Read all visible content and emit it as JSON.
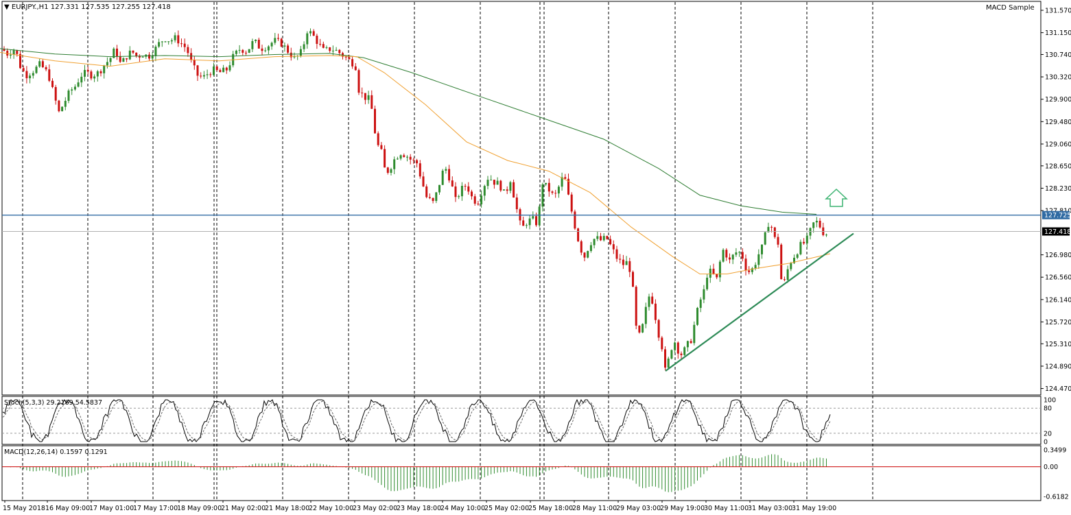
{
  "header": {
    "symbol": "EURJPY.,H1",
    "ohlc": "127.331 127.535 127.255 127.418",
    "indicator_name": "MACD Sample"
  },
  "colors": {
    "bull": "#2e8b2e",
    "bear": "#cc1111",
    "ma_fast": "#f0a030",
    "ma_slow": "#2e7d32",
    "resistance": "#2f6aa3",
    "trendline": "#2e8b57",
    "arrow": "#3cb371",
    "macd_hist": "#2e8b2e",
    "macd_signal": "#cc0000",
    "badge_bg": "#2f6aa3",
    "price_badge_bg": "#000000"
  },
  "chart_data": [
    {
      "type": "candlestick",
      "price_axis": [
        "131.570",
        "131.150",
        "130.740",
        "130.320",
        "129.900",
        "129.480",
        "129.060",
        "128.650",
        "128.230",
        "127.810",
        "126.980",
        "126.560",
        "126.140",
        "125.720",
        "125.310",
        "124.890",
        "124.470"
      ],
      "ylim": [
        124.4,
        131.66
      ],
      "time_axis": [
        "15 May 2018",
        "16 May 09:00",
        "17 May 01:00",
        "17 May 17:00",
        "18 May 09:00",
        "21 May 02:00",
        "21 May 18:00",
        "22 May 10:00",
        "23 May 02:00",
        "23 May 18:00",
        "24 May 10:00",
        "25 May 02:00",
        "25 May 18:00",
        "28 May 11:00",
        "29 May 03:00",
        "29 May 19:00",
        "30 May 11:00",
        "31 May 03:00",
        "31 May 19:00"
      ],
      "resistance_level": 127.725,
      "resistance_label": "127.725",
      "last_price": 127.418,
      "last_price_label": "127.418",
      "close_path": [
        [
          0,
          130.9
        ],
        [
          10,
          130.75
        ],
        [
          22,
          130.85
        ],
        [
          30,
          130.5
        ],
        [
          38,
          130.35
        ],
        [
          50,
          130.45
        ],
        [
          58,
          130.55
        ],
        [
          66,
          130.45
        ],
        [
          72,
          130.3
        ],
        [
          78,
          130.0
        ],
        [
          86,
          129.65
        ],
        [
          94,
          129.85
        ],
        [
          102,
          130.05
        ],
        [
          110,
          130.15
        ],
        [
          118,
          130.35
        ],
        [
          126,
          130.4
        ],
        [
          134,
          130.35
        ],
        [
          144,
          130.4
        ],
        [
          152,
          130.55
        ],
        [
          160,
          130.65
        ],
        [
          168,
          130.85
        ],
        [
          176,
          130.55
        ],
        [
          184,
          130.7
        ],
        [
          192,
          130.8
        ],
        [
          200,
          130.7
        ],
        [
          208,
          130.75
        ],
        [
          216,
          130.7
        ],
        [
          224,
          130.8
        ],
        [
          232,
          130.95
        ],
        [
          240,
          131.05
        ],
        [
          248,
          131.0
        ],
        [
          256,
          131.05
        ],
        [
          264,
          130.95
        ],
        [
          272,
          130.85
        ],
        [
          280,
          130.55
        ],
        [
          288,
          130.35
        ],
        [
          296,
          130.3
        ],
        [
          304,
          130.4
        ],
        [
          312,
          130.45
        ],
        [
          320,
          130.4
        ],
        [
          330,
          130.45
        ],
        [
          340,
          130.7
        ],
        [
          350,
          130.85
        ],
        [
          360,
          130.8
        ],
        [
          370,
          131.0
        ],
        [
          380,
          130.85
        ],
        [
          390,
          130.9
        ],
        [
          400,
          131.0
        ],
        [
          410,
          130.95
        ],
        [
          420,
          130.8
        ],
        [
          430,
          130.65
        ],
        [
          440,
          130.8
        ],
        [
          448,
          131.2
        ],
        [
          456,
          131.1
        ],
        [
          464,
          130.95
        ],
        [
          472,
          130.8
        ],
        [
          482,
          130.85
        ],
        [
          492,
          130.8
        ],
        [
          502,
          130.7
        ],
        [
          512,
          130.6
        ],
        [
          518,
          130.55
        ],
        [
          522,
          130.1
        ],
        [
          530,
          129.95
        ],
        [
          538,
          129.9
        ],
        [
          544,
          129.6
        ],
        [
          548,
          129.1
        ],
        [
          556,
          128.9
        ],
        [
          562,
          128.5
        ],
        [
          568,
          128.6
        ],
        [
          576,
          128.8
        ],
        [
          584,
          128.9
        ],
        [
          592,
          128.85
        ],
        [
          600,
          128.75
        ],
        [
          608,
          128.7
        ],
        [
          614,
          128.4
        ],
        [
          622,
          128.05
        ],
        [
          632,
          127.95
        ],
        [
          640,
          128.3
        ],
        [
          648,
          128.65
        ],
        [
          656,
          128.4
        ],
        [
          664,
          128.0
        ],
        [
          672,
          128.2
        ],
        [
          680,
          128.3
        ],
        [
          688,
          128.05
        ],
        [
          696,
          127.95
        ],
        [
          704,
          128.25
        ],
        [
          712,
          128.45
        ],
        [
          720,
          128.35
        ],
        [
          728,
          128.3
        ],
        [
          736,
          128.1
        ],
        [
          744,
          128.4
        ],
        [
          752,
          127.9
        ],
        [
          760,
          127.45
        ],
        [
          768,
          127.6
        ],
        [
          776,
          127.65
        ],
        [
          784,
          127.55
        ],
        [
          790,
          128.35
        ],
        [
          800,
          128.2
        ],
        [
          808,
          128.05
        ],
        [
          816,
          128.3
        ],
        [
          822,
          128.5
        ],
        [
          828,
          128.1
        ],
        [
          834,
          127.75
        ],
        [
          840,
          127.4
        ],
        [
          846,
          127.1
        ],
        [
          852,
          126.95
        ],
        [
          860,
          127.2
        ],
        [
          868,
          127.3
        ],
        [
          876,
          127.25
        ],
        [
          884,
          127.3
        ],
        [
          892,
          127.1
        ],
        [
          900,
          126.9
        ],
        [
          908,
          126.8
        ],
        [
          916,
          126.85
        ],
        [
          922,
          126.4
        ],
        [
          926,
          125.7
        ],
        [
          930,
          125.4
        ],
        [
          936,
          125.6
        ],
        [
          942,
          126.0
        ],
        [
          948,
          126.3
        ],
        [
          954,
          125.9
        ],
        [
          960,
          125.5
        ],
        [
          966,
          125.2
        ],
        [
          970,
          124.75
        ],
        [
          976,
          125.1
        ],
        [
          982,
          125.4
        ],
        [
          988,
          125.2
        ],
        [
          994,
          125.1
        ],
        [
          1000,
          125.25
        ],
        [
          1008,
          125.4
        ],
        [
          1014,
          125.8
        ],
        [
          1020,
          126.1
        ],
        [
          1026,
          126.3
        ],
        [
          1032,
          126.7
        ],
        [
          1040,
          126.6
        ],
        [
          1046,
          126.5
        ],
        [
          1052,
          127.1
        ],
        [
          1058,
          127.0
        ],
        [
          1064,
          126.85
        ],
        [
          1070,
          127.0
        ],
        [
          1076,
          127.05
        ],
        [
          1082,
          126.95
        ],
        [
          1088,
          126.7
        ],
        [
          1094,
          126.65
        ],
        [
          1100,
          126.8
        ],
        [
          1106,
          127.0
        ],
        [
          1112,
          127.15
        ],
        [
          1118,
          127.5
        ],
        [
          1122,
          127.65
        ],
        [
          1128,
          127.3
        ],
        [
          1134,
          127.2
        ],
        [
          1138,
          126.55
        ],
        [
          1142,
          126.4
        ],
        [
          1148,
          126.7
        ],
        [
          1154,
          126.9
        ],
        [
          1160,
          127.0
        ],
        [
          1166,
          127.15
        ],
        [
          1172,
          127.2
        ],
        [
          1178,
          127.3
        ],
        [
          1184,
          127.55
        ],
        [
          1190,
          127.6
        ],
        [
          1196,
          127.5
        ],
        [
          1202,
          127.35
        ],
        [
          1208,
          127.42
        ]
      ],
      "ma_fast_path": [
        [
          0,
          130.78
        ],
        [
          80,
          130.62
        ],
        [
          160,
          130.52
        ],
        [
          240,
          130.66
        ],
        [
          320,
          130.62
        ],
        [
          400,
          130.7
        ],
        [
          480,
          130.72
        ],
        [
          520,
          130.7
        ],
        [
          560,
          130.4
        ],
        [
          620,
          129.8
        ],
        [
          680,
          129.1
        ],
        [
          740,
          128.75
        ],
        [
          800,
          128.55
        ],
        [
          860,
          128.15
        ],
        [
          920,
          127.5
        ],
        [
          980,
          126.95
        ],
        [
          1020,
          126.62
        ],
        [
          1060,
          126.62
        ],
        [
          1100,
          126.72
        ],
        [
          1150,
          126.82
        ],
        [
          1210,
          127.0
        ]
      ],
      "ma_slow_path": [
        [
          0,
          130.85
        ],
        [
          80,
          130.75
        ],
        [
          160,
          130.7
        ],
        [
          240,
          130.72
        ],
        [
          320,
          130.7
        ],
        [
          400,
          130.74
        ],
        [
          480,
          130.76
        ],
        [
          530,
          130.68
        ],
        [
          600,
          130.4
        ],
        [
          700,
          129.95
        ],
        [
          790,
          129.55
        ],
        [
          880,
          129.15
        ],
        [
          960,
          128.6
        ],
        [
          1020,
          128.1
        ],
        [
          1080,
          127.9
        ],
        [
          1140,
          127.78
        ],
        [
          1190,
          127.74
        ]
      ],
      "trendline": [
        [
          970,
          124.8
        ],
        [
          1244,
          127.38
        ]
      ]
    },
    {
      "type": "line",
      "title": "Stoch(5,3,3) 29.2169 54.5837",
      "levels": [
        "100",
        "80",
        "20",
        "0"
      ],
      "ylim": [
        0,
        100
      ]
    },
    {
      "type": "bar",
      "title": "MACD(12,26,14) 0.1597 0.1291",
      "axis_labels": [
        "0.3499",
        "0.00",
        "-0.6182"
      ],
      "ylim": [
        -0.6182,
        0.3499
      ]
    }
  ]
}
